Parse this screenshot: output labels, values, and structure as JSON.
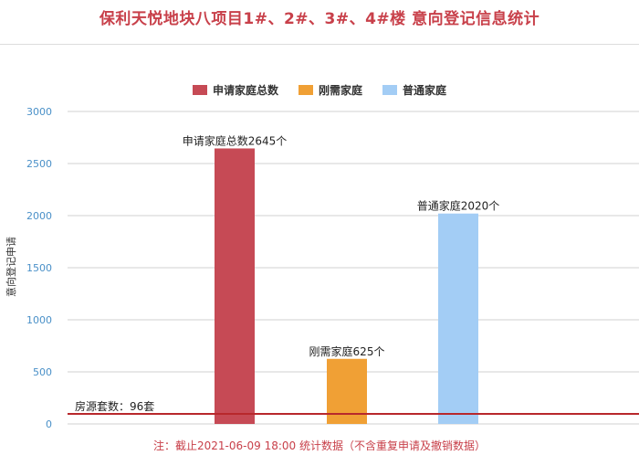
{
  "title": "保利天悦地块八项目1#、2#、3#、4#楼 意向登记信息统计",
  "footnote": "注：截止2021-06-09 18:00 统计数据（不含重复申请及撤销数据）",
  "chart_data": {
    "type": "bar",
    "title": "保利天悦地块八项目1#、2#、3#、4#楼 意向登记信息统计",
    "ylabel": "意向登记申请",
    "xlabel": "",
    "ylim": [
      0,
      3000
    ],
    "yticks": [
      0,
      500,
      1000,
      1500,
      2000,
      2500,
      3000
    ],
    "grid": true,
    "legend_position": "top",
    "series": [
      {
        "name": "申请家庭总数",
        "value": 2645,
        "label": "申请家庭总数2645个",
        "color": "#c64a55"
      },
      {
        "name": "刚需家庭",
        "value": 625,
        "label": "刚需家庭625个",
        "color": "#f0a035"
      },
      {
        "name": "普通家庭",
        "value": 2020,
        "label": "普通家庭2020个",
        "color": "#a3cdf5"
      }
    ],
    "reference_line": {
      "value": 96,
      "label": "房源套数：96套",
      "color": "#b8282c"
    }
  }
}
